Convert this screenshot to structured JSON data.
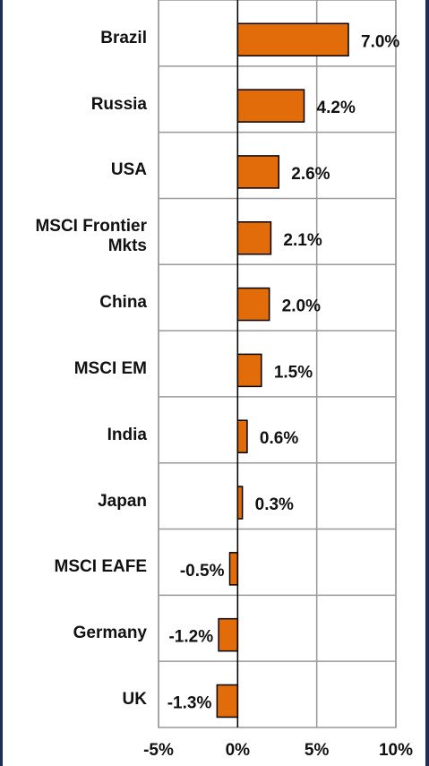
{
  "chart_data": {
    "type": "bar",
    "orientation": "horizontal",
    "categories": [
      "Brazil",
      "Russia",
      "USA",
      "MSCI Frontier Mkts",
      "China",
      "MSCI EM",
      "India",
      "Japan",
      "MSCI EAFE",
      "Germany",
      "UK"
    ],
    "values": [
      7.0,
      4.2,
      2.6,
      2.1,
      2.0,
      1.5,
      0.6,
      0.3,
      -0.5,
      -1.2,
      -1.3
    ],
    "value_labels": [
      "7.0%",
      "4.2%",
      "2.6%",
      "2.1%",
      "2.0%",
      "1.5%",
      "0.6%",
      "0.3%",
      "-0.5%",
      "-1.2%",
      "-1.3%"
    ],
    "color": "#e36c0a",
    "xlim": [
      -5,
      10
    ],
    "xticks": [
      {
        "value": -5,
        "label": "-5%"
      },
      {
        "value": 0,
        "label": "0%"
      },
      {
        "value": 5,
        "label": "5%"
      },
      {
        "value": 10,
        "label": "10%"
      }
    ],
    "grid": true
  }
}
